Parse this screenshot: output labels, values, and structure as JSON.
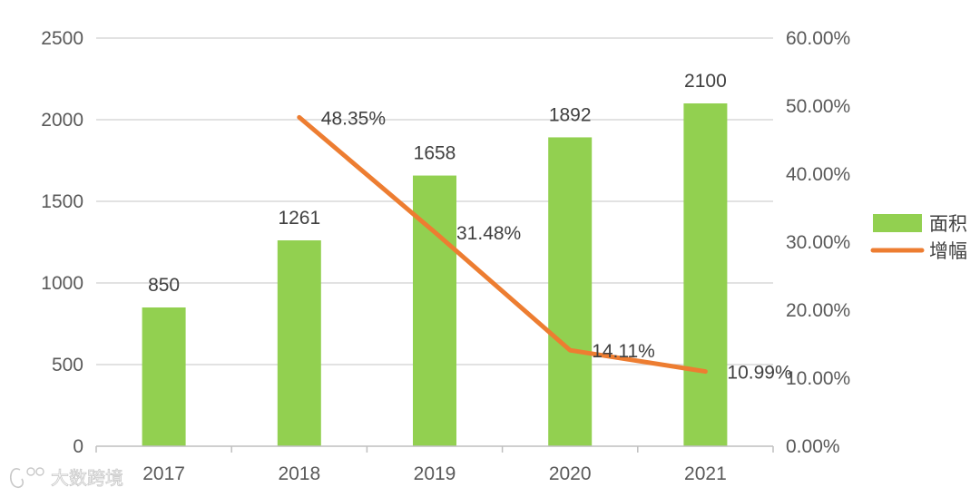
{
  "chart_data": {
    "type": "bar+line",
    "categories": [
      "2017",
      "2018",
      "2019",
      "2020",
      "2021"
    ],
    "series": [
      {
        "name": "面积",
        "type": "bar",
        "axis": "left",
        "values": [
          850,
          1261,
          1658,
          1892,
          2100
        ],
        "labels": [
          "850",
          "1261",
          "1658",
          "1892",
          "2100"
        ]
      },
      {
        "name": "增幅",
        "type": "line",
        "axis": "right",
        "values": [
          null,
          48.35,
          31.48,
          14.11,
          10.99
        ],
        "labels": [
          null,
          "48.35%",
          "31.48%",
          "14.11%",
          "10.99%"
        ]
      }
    ],
    "left_axis": {
      "min": 0,
      "max": 2500,
      "step": 500,
      "ticks": [
        "0",
        "500",
        "1000",
        "1500",
        "2000",
        "2500"
      ]
    },
    "right_axis": {
      "min": 0,
      "max": 60,
      "step": 10,
      "ticks": [
        "0.00%",
        "10.00%",
        "20.00%",
        "30.00%",
        "40.00%",
        "50.00%",
        "60.00%"
      ]
    },
    "grid": true,
    "legend_position": "right"
  },
  "colors": {
    "bar": "#92d050",
    "line": "#ed7d31",
    "grid": "#d9d9d9",
    "axis": "#bfbfbf"
  },
  "watermark": {
    "text": "大数跨境",
    "icon": "logo-icon"
  }
}
